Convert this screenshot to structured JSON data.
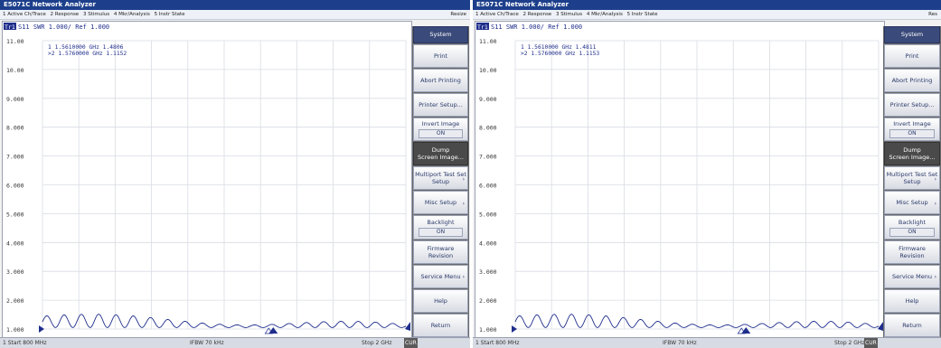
{
  "left": {
    "title": "E5071C Network Analyzer",
    "menu": [
      "1 Active Ch/Trace",
      "2 Response",
      "3 Stimulus",
      "4 Mkr/Analysis",
      "5 Instr State"
    ],
    "resize": "Resize",
    "trace_header": "S11  SWR 1.000/  Ref 1.000",
    "trace_tag": "Tr1",
    "marker1": "1   1.5610000 GHz  1.4806",
    "marker2": ">2  1.5760000 GHz  1.1152",
    "y_ticks": [
      "11.00",
      "10.00",
      "9.000",
      "8.000",
      "7.000",
      "6.000",
      "5.000",
      "4.000",
      "3.000",
      "2.000",
      "1.000"
    ],
    "start": "1  Start 800 MHz",
    "ifbw": "IFBW 70 kHz",
    "stop": "Stop 2 GHz",
    "stop_tag": "CUR"
  },
  "right": {
    "title": "E5071C Network Analyzer",
    "menu": [
      "1 Active Ch/Trace",
      "2 Response",
      "3 Stimulus",
      "4 Mkr/Analysis",
      "5 Instr State"
    ],
    "resize": "Res",
    "trace_header": "S11  SWR 1.000/  Ref 1.000",
    "trace_tag": "Tr1",
    "marker1": "1   1.5610000 GHz  1.4811",
    "marker2": ">2  1.5760000 GHz  1.1153",
    "y_ticks": [
      "11.00",
      "10.00",
      "9.000",
      "8.000",
      "7.000",
      "6.000",
      "5.000",
      "4.000",
      "3.000",
      "2.000",
      "1.000"
    ],
    "start": "1  Start 800 MHz",
    "ifbw": "IFBW 70 kHz",
    "stop": "Stop 2 GHz",
    "stop_tag": "CUR"
  },
  "softkeys": {
    "system": "System",
    "print": "Print",
    "abort_printing": "Abort Printing",
    "printer_setup": "Printer Setup...",
    "invert_image": "Invert Image",
    "invert_value": "ON",
    "dump_1": "Dump",
    "dump_2": "Screen Image...",
    "multiport_1": "Multiport Test Set",
    "multiport_2": "Setup",
    "misc_setup": "Misc Setup",
    "backlight": "Backlight",
    "backlight_value": "ON",
    "firmware_1": "Firmware",
    "firmware_2": "Revision",
    "service_menu": "Service Menu",
    "help": "Help",
    "return": "Return"
  },
  "colors": {
    "trace": "#1f2e8c",
    "grid": "#d9dce3",
    "marker": "#1f2e8c"
  }
}
